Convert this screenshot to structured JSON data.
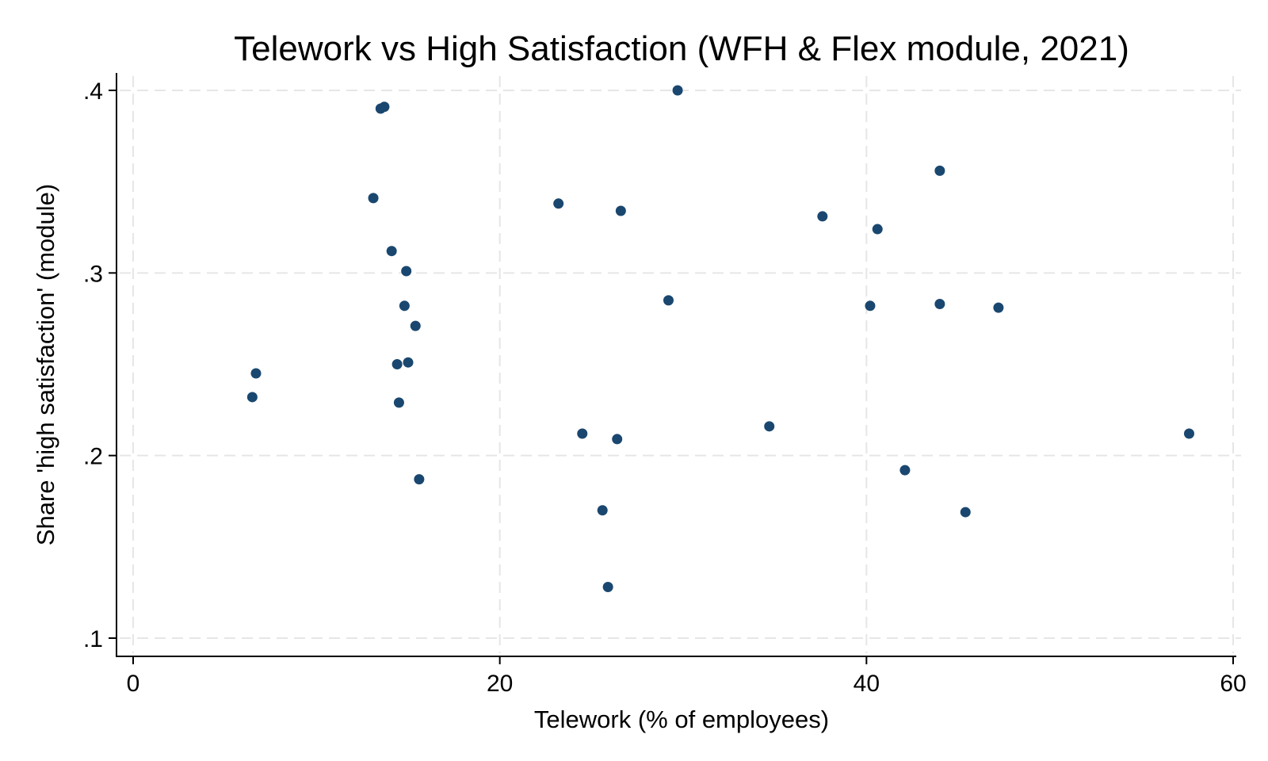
{
  "chart_data": {
    "type": "scatter",
    "title": "Telework vs High Satisfaction (WFH & Flex module, 2021)",
    "xlabel": "Telework (% of employees)",
    "ylabel": "Share 'high satisfaction' (module)",
    "xlim": [
      0,
      60
    ],
    "ylim": [
      0.1,
      0.4
    ],
    "xticks": [
      {
        "value": 0,
        "label": "0"
      },
      {
        "value": 20,
        "label": "20"
      },
      {
        "value": 40,
        "label": "40"
      },
      {
        "value": 60,
        "label": "60"
      }
    ],
    "yticks": [
      {
        "value": 0.1,
        "label": ".1"
      },
      {
        "value": 0.2,
        "label": ".2"
      },
      {
        "value": 0.3,
        "label": ".3"
      },
      {
        "value": 0.4,
        "label": ".4"
      }
    ],
    "grid": true,
    "marker_color": "#1a476f",
    "points": [
      {
        "x": 6.5,
        "y": 0.232
      },
      {
        "x": 6.7,
        "y": 0.245
      },
      {
        "x": 13.1,
        "y": 0.341
      },
      {
        "x": 13.5,
        "y": 0.39
      },
      {
        "x": 13.7,
        "y": 0.391
      },
      {
        "x": 14.1,
        "y": 0.312
      },
      {
        "x": 14.4,
        "y": 0.25
      },
      {
        "x": 14.5,
        "y": 0.229
      },
      {
        "x": 14.8,
        "y": 0.282
      },
      {
        "x": 14.9,
        "y": 0.301
      },
      {
        "x": 15.0,
        "y": 0.251
      },
      {
        "x": 15.4,
        "y": 0.271
      },
      {
        "x": 15.6,
        "y": 0.187
      },
      {
        "x": 23.2,
        "y": 0.338
      },
      {
        "x": 24.5,
        "y": 0.212
      },
      {
        "x": 25.6,
        "y": 0.17
      },
      {
        "x": 25.9,
        "y": 0.128
      },
      {
        "x": 26.4,
        "y": 0.209
      },
      {
        "x": 26.6,
        "y": 0.334
      },
      {
        "x": 29.2,
        "y": 0.285
      },
      {
        "x": 29.7,
        "y": 0.4
      },
      {
        "x": 34.7,
        "y": 0.216
      },
      {
        "x": 37.6,
        "y": 0.331
      },
      {
        "x": 40.2,
        "y": 0.282
      },
      {
        "x": 40.6,
        "y": 0.324
      },
      {
        "x": 42.1,
        "y": 0.192
      },
      {
        "x": 44.0,
        "y": 0.356
      },
      {
        "x": 44.0,
        "y": 0.283
      },
      {
        "x": 45.4,
        "y": 0.169
      },
      {
        "x": 47.2,
        "y": 0.281
      },
      {
        "x": 57.6,
        "y": 0.212
      }
    ]
  }
}
